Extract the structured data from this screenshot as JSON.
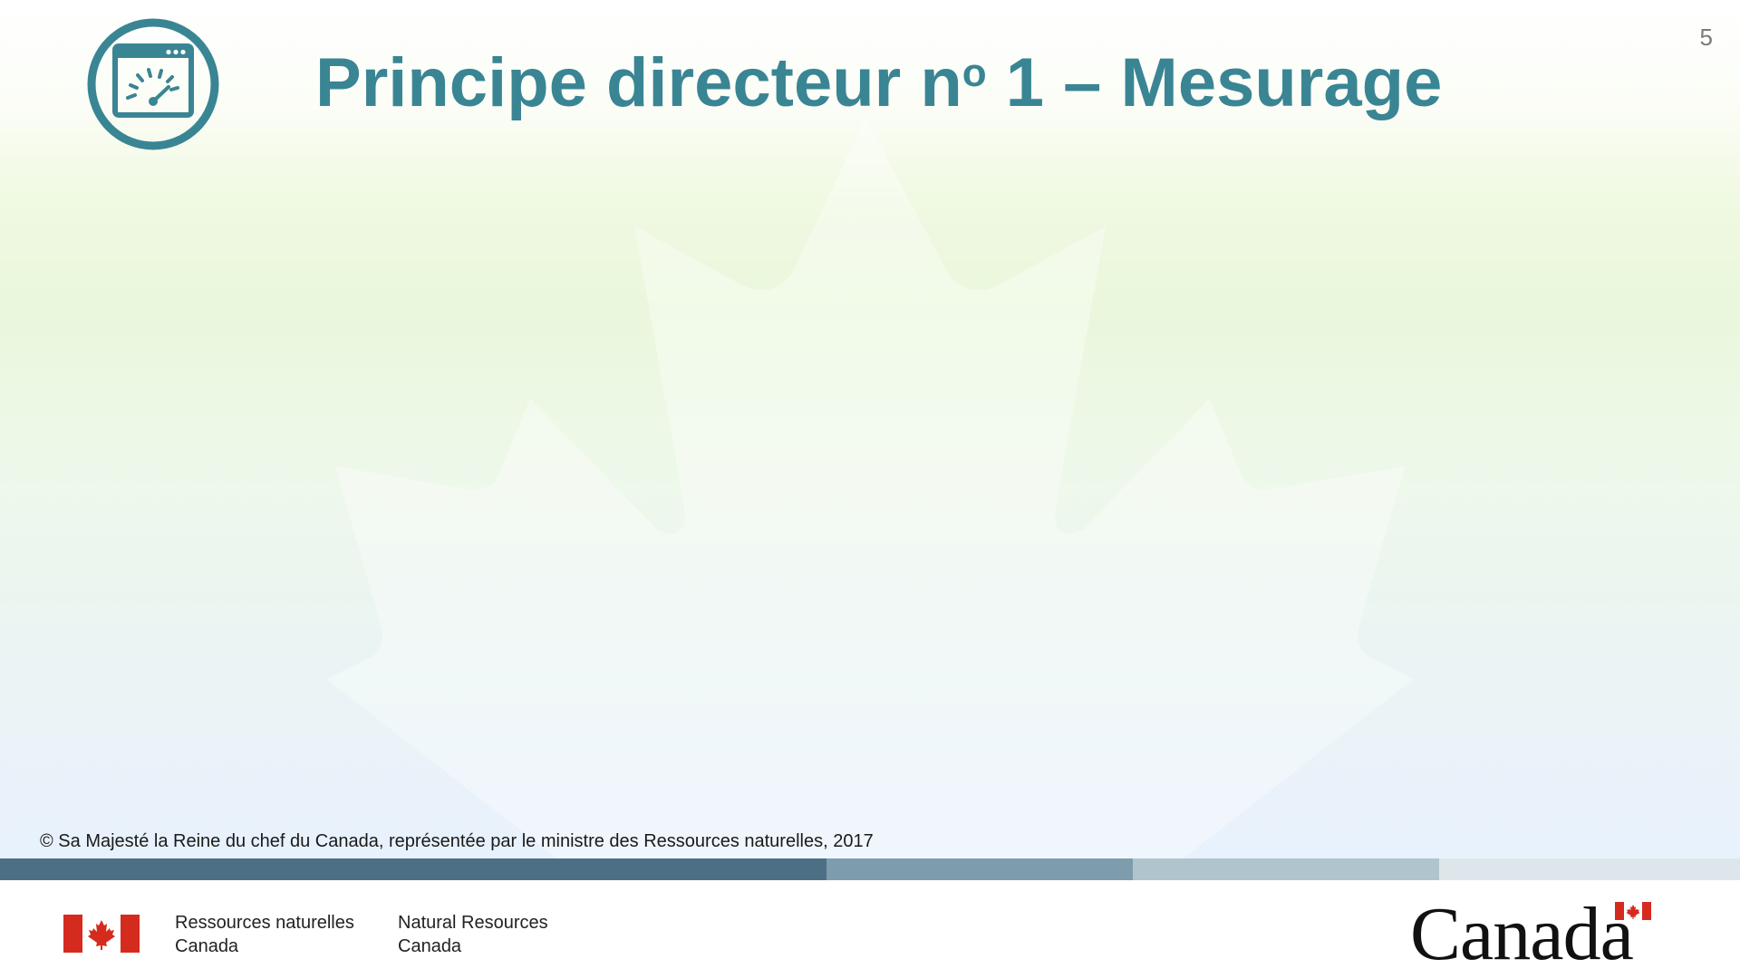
{
  "slide": {
    "title_main": "Principe directeur n",
    "title_superscript": "o",
    "title_rest": " 1 – Mesurage",
    "page_number": "5",
    "copyright": "© Sa Majesté la Reine du chef du Canada, représentée par le ministre des Ressources naturelles, 2017",
    "title_icon": "dashboard-gauge-icon"
  },
  "colors": {
    "title": "#3a8594",
    "icon": "#3a8594",
    "flag_red": "#d52b1e",
    "stripe_dark": "#4d6f85",
    "stripe_mid": "#7d9cac",
    "stripe_light": "#b0c4cd",
    "stripe_lightest": "#dde6ea"
  },
  "footer": {
    "dept_fr_line1": "Ressources naturelles",
    "dept_fr_line2": "Canada",
    "dept_en_line1": "Natural Resources",
    "dept_en_line2": "Canada",
    "wordmark": "Canada"
  }
}
